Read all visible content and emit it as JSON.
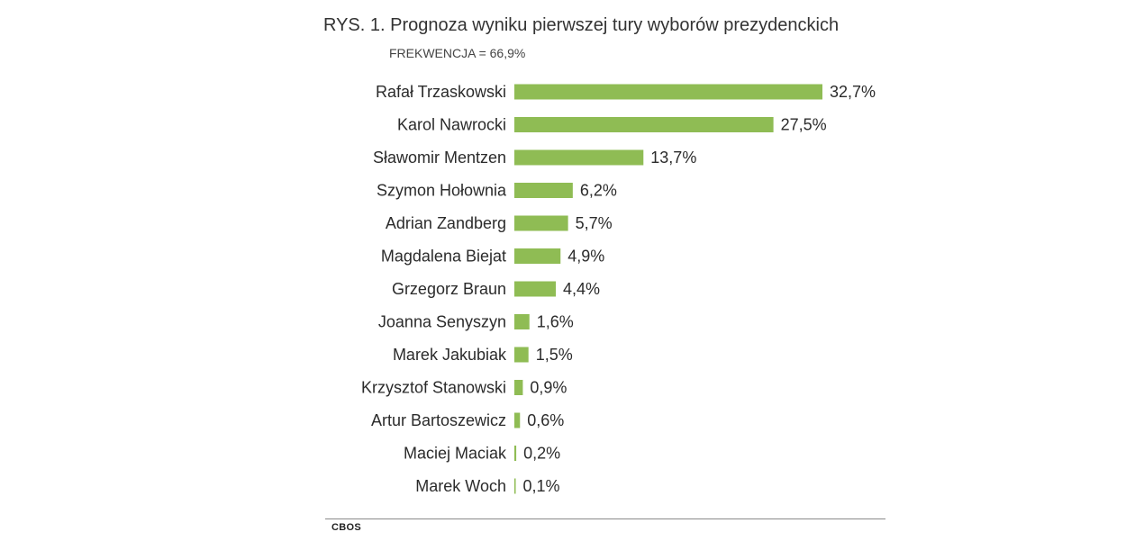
{
  "chart_data": {
    "type": "bar",
    "orientation": "horizontal",
    "title": "RYS. 1. Prognoza wyniku pierwszej tury wyborów prezydenckich",
    "subtitle": "FREKWENCJA = 66,9%",
    "categories": [
      "Rafał Trzaskowski",
      "Karol Nawrocki",
      "Sławomir Mentzen",
      "Szymon Hołownia",
      "Adrian Zandberg",
      "Magdalena Biejat",
      "Grzegorz Braun",
      "Joanna Senyszyn",
      "Marek Jakubiak",
      "Krzysztof Stanowski",
      "Artur Bartoszewicz",
      "Maciej Maciak",
      "Marek Woch"
    ],
    "values": [
      32.7,
      27.5,
      13.7,
      6.2,
      5.7,
      4.9,
      4.4,
      1.6,
      1.5,
      0.9,
      0.6,
      0.2,
      0.1
    ],
    "value_labels": [
      "32,7%",
      "27,5%",
      "13,7%",
      "6,2%",
      "5,7%",
      "4,9%",
      "4,4%",
      "1,6%",
      "1,5%",
      "0,9%",
      "0,6%",
      "0,2%",
      "0,1%"
    ],
    "xlim": [
      0,
      32.7
    ],
    "grid": false,
    "legend": "none",
    "bar_color": "#8fbc54",
    "source": "CBOS"
  }
}
